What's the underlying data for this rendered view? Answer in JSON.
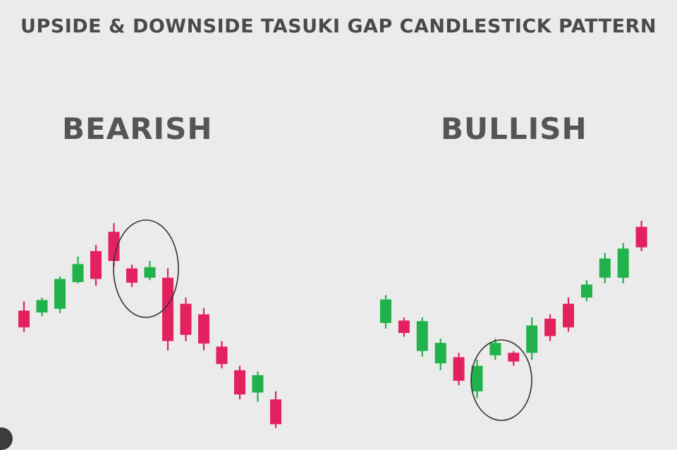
{
  "title": "UPSIDE & DOWNSIDE TASUKI GAP CANDLESTICK PATTERN",
  "colors": {
    "background": "#ebebeb",
    "bearish_candle": "#e3215f",
    "bullish_candle": "#21b24b",
    "text": "#4a4a4a"
  },
  "chart_data": [
    {
      "type": "candlestick",
      "title": "BEARISH",
      "pattern_highlight": [
        6,
        8
      ],
      "candles": [
        {
          "open": 12.0,
          "close": 9.3,
          "high": 13.5,
          "low": 8.6
        },
        {
          "open": 11.7,
          "close": 13.7,
          "high": 14.1,
          "low": 11.1
        },
        {
          "open": 12.3,
          "close": 17.1,
          "high": 17.5,
          "low": 11.6
        },
        {
          "open": 16.6,
          "close": 19.5,
          "high": 20.7,
          "low": 16.4
        },
        {
          "open": 21.6,
          "close": 17.1,
          "high": 22.6,
          "low": 16.0
        },
        {
          "open": 24.7,
          "close": 20.0,
          "high": 26.1,
          "low": 19.1
        },
        {
          "open": 18.8,
          "close": 16.5,
          "high": 19.4,
          "low": 15.8
        },
        {
          "open": 17.3,
          "close": 19.0,
          "high": 20.0,
          "low": 16.9
        },
        {
          "open": 17.3,
          "close": 7.1,
          "high": 18.8,
          "low": 5.6
        },
        {
          "open": 13.1,
          "close": 8.1,
          "high": 14.1,
          "low": 7.1
        },
        {
          "open": 11.4,
          "close": 6.7,
          "high": 12.4,
          "low": 5.6
        },
        {
          "open": 6.2,
          "close": 3.4,
          "high": 7.1,
          "low": 2.7
        },
        {
          "open": 2.4,
          "close": -1.5,
          "high": 3.1,
          "low": -2.3
        },
        {
          "open": -1.2,
          "close": 1.6,
          "high": 2.2,
          "low": -2.7
        },
        {
          "open": -2.3,
          "close": -6.3,
          "high": -1.0,
          "low": -6.9
        }
      ]
    },
    {
      "type": "candlestick",
      "title": "BULLISH",
      "pattern_highlight": [
        6,
        8
      ],
      "candles": [
        {
          "open": 10.0,
          "close": 13.8,
          "high": 14.5,
          "low": 9.1
        },
        {
          "open": 10.4,
          "close": 8.4,
          "high": 10.9,
          "low": 7.8
        },
        {
          "open": 5.5,
          "close": 10.3,
          "high": 10.9,
          "low": 4.6
        },
        {
          "open": 3.5,
          "close": 6.8,
          "high": 7.5,
          "low": 2.4
        },
        {
          "open": 4.5,
          "close": 0.7,
          "high": 5.2,
          "low": 0.0
        },
        {
          "open": -1.0,
          "close": 3.1,
          "high": 4.1,
          "low": -2.1
        },
        {
          "open": 4.8,
          "close": 6.8,
          "high": 7.5,
          "low": 4.1
        },
        {
          "open": 5.2,
          "close": 3.8,
          "high": 5.5,
          "low": 3.1
        },
        {
          "open": 5.2,
          "close": 9.6,
          "high": 10.9,
          "low": 4.1
        },
        {
          "open": 10.7,
          "close": 7.9,
          "high": 11.4,
          "low": 7.1
        },
        {
          "open": 13.1,
          "close": 9.3,
          "high": 14.1,
          "low": 8.6
        },
        {
          "open": 14.1,
          "close": 16.2,
          "high": 16.9,
          "low": 13.5
        },
        {
          "open": 17.3,
          "close": 20.4,
          "high": 21.3,
          "low": 16.4
        },
        {
          "open": 17.3,
          "close": 22.0,
          "high": 22.9,
          "low": 16.4
        },
        {
          "open": 25.5,
          "close": 22.2,
          "high": 26.5,
          "low": 21.6
        }
      ]
    }
  ]
}
